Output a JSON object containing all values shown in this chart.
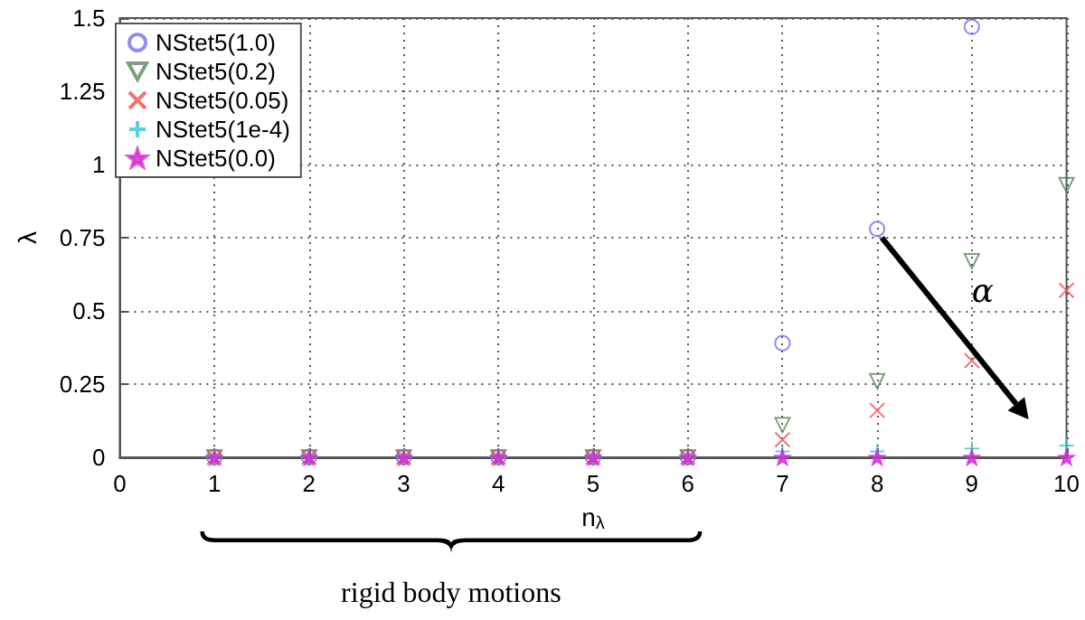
{
  "chart_data": {
    "type": "scatter",
    "xlabel": "n$_{λ}$",
    "ylabel": "λ",
    "x": [
      1,
      2,
      3,
      4,
      5,
      6,
      7,
      8,
      9,
      10
    ],
    "series": [
      {
        "name": "NStet5(1.0)",
        "color": "#7070f0",
        "marker": "circle",
        "values": [
          0,
          0,
          0,
          0,
          0,
          0,
          0.39,
          0.78,
          1.47,
          null
        ]
      },
      {
        "name": "NStet5(0.2)",
        "color": "#5a8a5a",
        "marker": "triangle",
        "values": [
          0,
          0,
          0,
          0,
          0,
          0,
          0.11,
          0.26,
          0.67,
          0.93
        ]
      },
      {
        "name": "NStet5(0.05)",
        "color": "#f05050",
        "marker": "cross",
        "values": [
          0,
          0,
          0,
          0,
          0,
          0,
          0.06,
          0.16,
          0.33,
          0.57
        ]
      },
      {
        "name": "NStet5(1e-4)",
        "color": "#30c8d0",
        "marker": "plus",
        "values": [
          0,
          0,
          0,
          0,
          0,
          0,
          0.02,
          0.02,
          0.03,
          0.04
        ]
      },
      {
        "name": "NStet5(0.0)",
        "color": "#d030d0",
        "marker": "star",
        "values": [
          0,
          0,
          0,
          0,
          0,
          0,
          0,
          0,
          0,
          0
        ]
      }
    ],
    "xlim": [
      0,
      10
    ],
    "xticks": [
      0,
      1,
      2,
      3,
      4,
      5,
      6,
      7,
      8,
      9,
      10
    ],
    "ylim": [
      0,
      1.5
    ],
    "yticks": [
      0,
      {
        "value": 0.25,
        "label": "0.25"
      },
      {
        "value": 0.5,
        "label": "0.5"
      },
      {
        "value": 0.75,
        "label": "0.75"
      },
      1,
      {
        "value": 1.25,
        "label": "1.25"
      },
      {
        "value": 1.5,
        "label": "1.5"
      }
    ],
    "grid": true,
    "legend": "top left",
    "annotations": [
      "α",
      "rigid body motions"
    ]
  }
}
